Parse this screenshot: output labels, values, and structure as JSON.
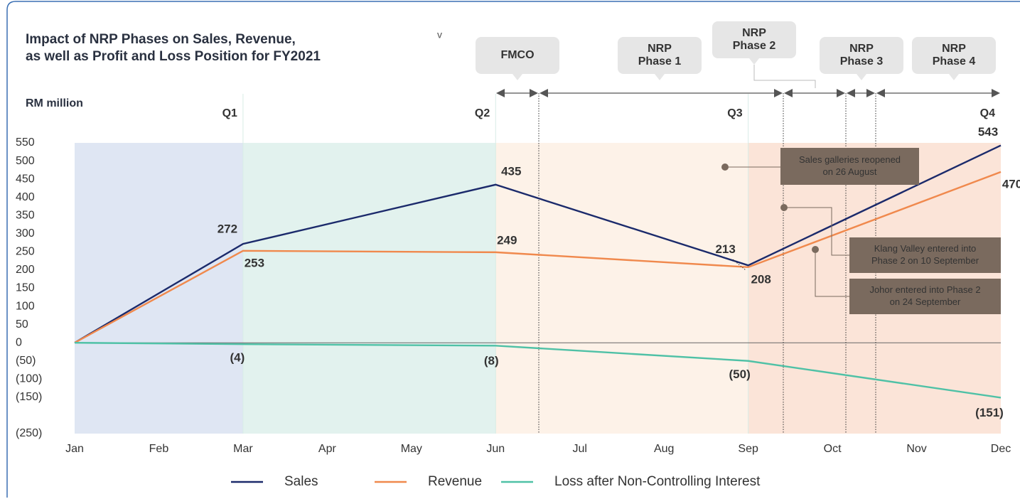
{
  "chart_data": {
    "type": "line",
    "title": [
      "Impact of NRP Phases on Sales, Revenue,",
      "as well as Profit and Loss Position for FY2021"
    ],
    "toggle": "v",
    "y_axis_label": "RM million",
    "categories": [
      "Jan",
      "Feb",
      "Mar",
      "Apr",
      "May",
      "Jun",
      "Jul",
      "Aug",
      "Sep",
      "Oct",
      "Nov",
      "Dec"
    ],
    "ylim": [
      -250,
      550
    ],
    "yticks": [
      550,
      500,
      450,
      400,
      350,
      300,
      250,
      200,
      150,
      100,
      50,
      0,
      {
        "value": -50,
        "label": "(50)"
      },
      {
        "value": -100,
        "label": "(100)"
      },
      {
        "value": -150,
        "label": "(150)"
      },
      {
        "value": -250,
        "label": "(250)"
      }
    ],
    "quarters": [
      {
        "label": "Q1",
        "from": "Jan",
        "to": "Mar",
        "color": "#2a6ab3",
        "fill": "#dfe6f3"
      },
      {
        "label": "Q2",
        "from": "Mar",
        "to": "Jun",
        "color": "#3bb49a",
        "fill": "#e2f2ee"
      },
      {
        "label": "Q3",
        "from": "Jun",
        "to": "Sep",
        "color": "#f5b27a",
        "fill": "#fdf2e8"
      },
      {
        "label": "Q4",
        "from": "Sep",
        "to": "Dec",
        "color": "#ef8a4a",
        "fill": "#fbe4d8"
      }
    ],
    "phases": [
      {
        "label": [
          "FMCO"
        ],
        "color": "#2a6ab3"
      },
      {
        "label": [
          "NRP",
          "Phase 1"
        ],
        "color": "#5bc0e8"
      },
      {
        "label": [
          "NRP",
          "Phase 2"
        ],
        "color": "#ef86b3"
      },
      {
        "label": [
          "NRP",
          "Phase 3"
        ],
        "color": "#f5b27a"
      },
      {
        "label": [
          "NRP",
          "Phase 4"
        ],
        "color": "#3bb49a"
      }
    ],
    "annotations": [
      [
        "Sales galleries reopened",
        "on 26 August"
      ],
      [
        "Klang Valley entered into",
        "Phase 2 on 10 September"
      ],
      [
        "Johor entered into Phase 2",
        "on 24 September"
      ]
    ],
    "series": [
      {
        "name": "Sales",
        "color": "#1b2a6b",
        "x": [
          "Jan",
          "Mar",
          "Jun",
          "Sep",
          "Dec"
        ],
        "values": [
          0,
          272,
          435,
          213,
          543
        ],
        "value_labels": [
          null,
          "272",
          "435",
          "213",
          "543"
        ]
      },
      {
        "name": "Revenue",
        "color": "#f0894d",
        "x": [
          "Jan",
          "Mar",
          "Jun",
          "Sep",
          "Dec"
        ],
        "values": [
          0,
          253,
          249,
          208,
          470
        ],
        "value_labels": [
          null,
          "253",
          "249",
          "208",
          "470"
        ]
      },
      {
        "name": "Loss after Non-Controlling Interest",
        "color": "#4fc1a6",
        "x": [
          "Jan",
          "Mar",
          "Jun",
          "Sep",
          "Dec"
        ],
        "values": [
          0,
          -4,
          -8,
          -50,
          -151
        ],
        "value_labels": [
          null,
          "(4)",
          "(8)",
          "(50)",
          "(151)"
        ]
      }
    ]
  }
}
